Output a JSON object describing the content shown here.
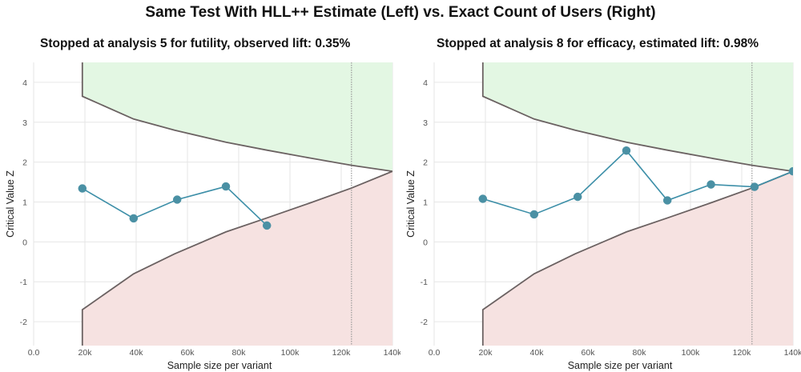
{
  "title": "Same Test With HLL++ Estimate (Left) vs. Exact Count of Users (Right)",
  "colors": {
    "efficacy_region": "#e3f7e3",
    "futility_region": "#f6e2e1",
    "boundary_line": "#6b6262",
    "series_line": "#3d8fa8",
    "series_point": "#4a90a4",
    "grid": "#e6e6e6",
    "final_sample_line": "#9a9a9a"
  },
  "chart_data": [
    {
      "type": "line",
      "title": "Stopped at analysis 5 for futility, observed lift: 0.35%",
      "xlabel": "Sample size per variant",
      "ylabel": "Critical Value Z",
      "xlim": [
        0,
        140000
      ],
      "ylim": [
        -2.6,
        4.5
      ],
      "x_ticks": [
        0,
        20000,
        40000,
        60000,
        80000,
        100000,
        120000,
        140000
      ],
      "x_tick_labels": [
        "0.0",
        "20k",
        "40k",
        "60k",
        "80k",
        "100k",
        "120k",
        "140k"
      ],
      "y_ticks": [
        -2,
        -1,
        0,
        1,
        2,
        3,
        4
      ],
      "y_tick_labels": [
        "-2",
        "-1",
        "0",
        "1",
        "2",
        "3",
        "4"
      ],
      "grid": true,
      "final_sample_line_x": 124000,
      "efficacy_boundary": {
        "x": [
          19000,
          19000,
          39000,
          55000,
          75000,
          91000,
          108000,
          124000,
          140000
        ],
        "y": [
          4.6,
          3.65,
          3.08,
          2.8,
          2.5,
          2.3,
          2.1,
          1.92,
          1.77
        ]
      },
      "futility_boundary": {
        "x": [
          19000,
          19000,
          39000,
          55000,
          75000,
          91000,
          108000,
          124000,
          140000
        ],
        "y": [
          -2.6,
          -1.7,
          -0.8,
          -0.3,
          0.25,
          0.6,
          0.98,
          1.35,
          1.77
        ]
      },
      "series": [
        {
          "x": [
            19000,
            39000,
            56000,
            75000,
            91000
          ],
          "y": [
            1.34,
            0.59,
            1.06,
            1.39,
            0.41
          ]
        }
      ]
    },
    {
      "type": "line",
      "title": "Stopped at analysis 8 for efficacy, estimated lift: 0.98%",
      "xlabel": "Sample size per variant",
      "ylabel": "Critical Value Z",
      "xlim": [
        0,
        140000
      ],
      "ylim": [
        -2.6,
        4.5
      ],
      "x_ticks": [
        0,
        20000,
        40000,
        60000,
        80000,
        100000,
        120000,
        140000
      ],
      "x_tick_labels": [
        "0.0",
        "20k",
        "40k",
        "60k",
        "80k",
        "100k",
        "120k",
        "140k"
      ],
      "y_ticks": [
        -2,
        -1,
        0,
        1,
        2,
        3,
        4
      ],
      "y_tick_labels": [
        "-2",
        "-1",
        "0",
        "1",
        "2",
        "3",
        "4"
      ],
      "grid": true,
      "final_sample_line_x": 124000,
      "efficacy_boundary": {
        "x": [
          19000,
          19000,
          39000,
          55000,
          75000,
          91000,
          108000,
          124000,
          140000
        ],
        "y": [
          4.6,
          3.65,
          3.08,
          2.8,
          2.5,
          2.3,
          2.1,
          1.92,
          1.77
        ]
      },
      "futility_boundary": {
        "x": [
          19000,
          19000,
          39000,
          55000,
          75000,
          91000,
          108000,
          124000,
          140000
        ],
        "y": [
          -2.6,
          -1.7,
          -0.8,
          -0.3,
          0.25,
          0.6,
          0.98,
          1.35,
          1.77
        ]
      },
      "series": [
        {
          "x": [
            19000,
            39000,
            56000,
            75000,
            91000,
            108000,
            125000,
            140000
          ],
          "y": [
            1.08,
            0.69,
            1.13,
            2.29,
            1.04,
            1.44,
            1.38,
            1.77
          ]
        }
      ]
    }
  ]
}
